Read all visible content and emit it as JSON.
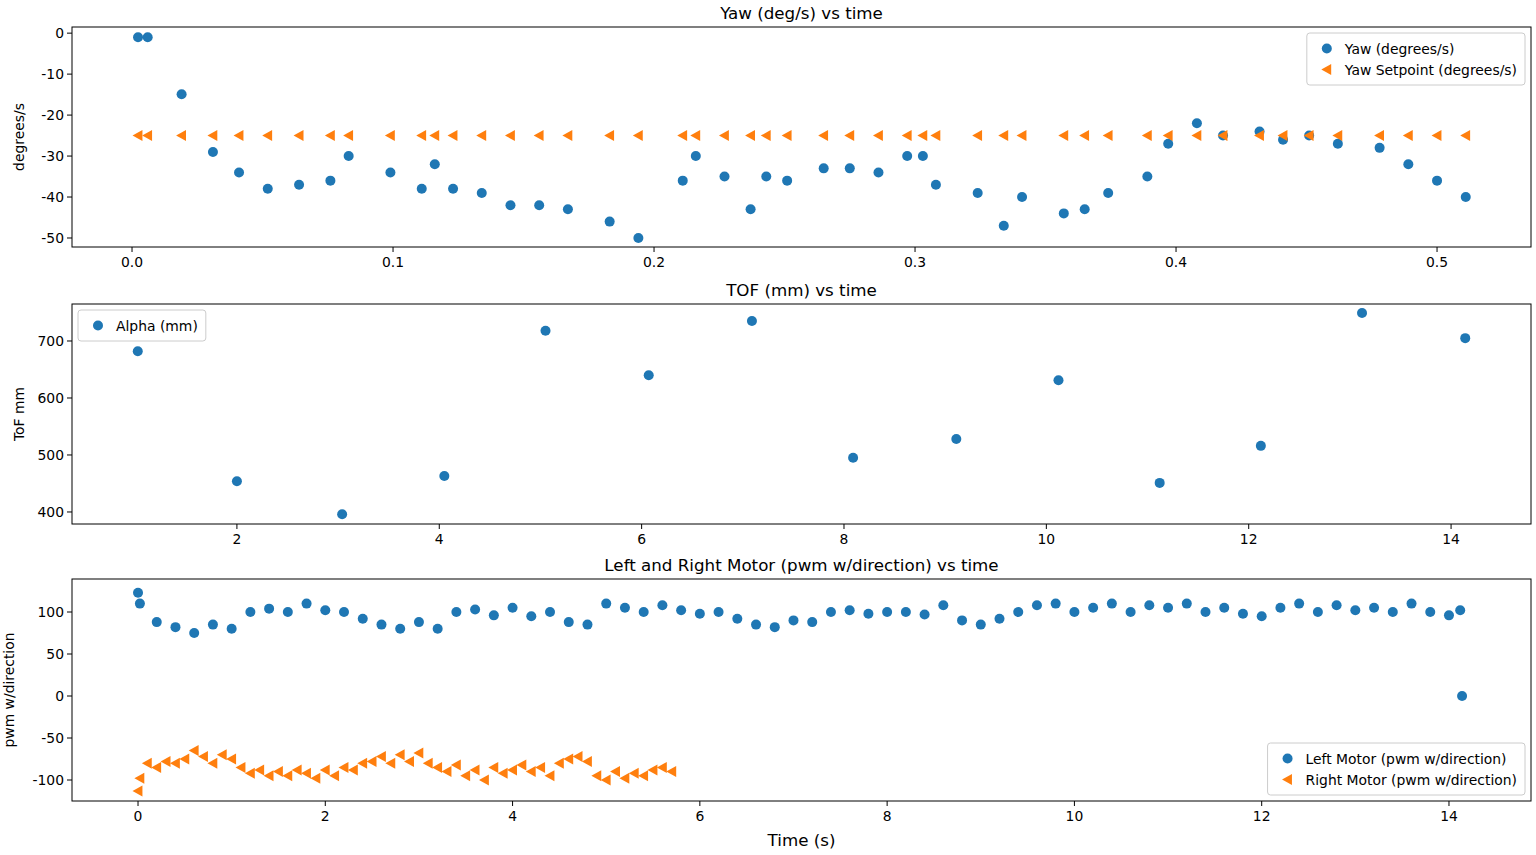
{
  "chart_data": [
    {
      "type": "scatter",
      "title": "Yaw (deg/s) vs time",
      "y_label": "degrees/s",
      "legend": "upper right",
      "xlim": [
        -0.023,
        0.536
      ],
      "ylim": [
        -52.2,
        1.5
      ],
      "xticks": [
        {
          "value": 0,
          "label": "0.0"
        },
        0.1,
        0.2,
        0.3,
        0.4,
        0.5
      ],
      "yticks": [
        0,
        -10,
        -20,
        -30,
        -40,
        -50
      ],
      "x": [
        0.0023,
        0.006,
        0.019,
        0.031,
        0.041,
        0.052,
        0.064,
        0.076,
        0.083,
        0.099,
        0.111,
        0.116,
        0.123,
        0.134,
        0.145,
        0.156,
        0.167,
        0.183,
        0.194,
        0.211,
        0.216,
        0.227,
        0.237,
        0.243,
        0.251,
        0.265,
        0.275,
        0.286,
        0.297,
        0.303,
        0.308,
        0.324,
        0.334,
        0.341,
        0.357,
        0.365,
        0.374,
        0.389,
        0.397,
        0.408,
        0.418,
        0.432,
        0.441,
        0.451,
        0.462,
        0.478,
        0.489,
        0.5,
        0.511
      ],
      "series": [
        {
          "name": "Yaw (degrees/s)",
          "color": "#1f77b4",
          "marker": "circle",
          "values": [
            -1,
            -1,
            -14.9,
            -29,
            -34,
            -38,
            -37,
            -36,
            -30,
            -34,
            -38,
            -32,
            -38,
            -39,
            -42,
            -42,
            -43,
            -46,
            -50,
            -36,
            -30,
            -35,
            -43,
            -35,
            -36,
            -33,
            -33,
            -34,
            -30,
            -30,
            -37,
            -39,
            -47,
            -40,
            -44,
            -43,
            -39,
            -35,
            -27,
            -22,
            -25,
            -24,
            -26,
            -25,
            -27,
            -28,
            -32,
            -36,
            -40
          ]
        },
        {
          "name": "Yaw Setpoint (degrees/s)",
          "color": "#ff7f0e",
          "marker": "triangle-left",
          "values": [
            -25,
            -25,
            -25,
            -25,
            -25,
            -25,
            -25,
            -25,
            -25,
            -25,
            -25,
            -25,
            -25,
            -25,
            -25,
            -25,
            -25,
            -25,
            -25,
            -25,
            -25,
            -25,
            -25,
            -25,
            -25,
            -25,
            -25,
            -25,
            -25,
            -25,
            -25,
            -25,
            -25,
            -25,
            -25,
            -25,
            -25,
            -25,
            -25,
            -25,
            -25,
            -25,
            -25,
            -25,
            -25,
            -25,
            -25,
            -25,
            -25
          ]
        }
      ]
    },
    {
      "type": "scatter",
      "title": "TOF (mm) vs time",
      "y_label": "ToF mm",
      "legend": "upper left",
      "xlim": [
        0.37,
        14.79
      ],
      "ylim": [
        378.9,
        764.9
      ],
      "xticks": [
        2,
        4,
        6,
        8,
        10,
        12,
        14
      ],
      "yticks": [
        400,
        500,
        600,
        700
      ],
      "x": [
        1.02,
        2.0,
        3.04,
        4.05,
        5.05,
        6.07,
        7.09,
        8.09,
        9.11,
        10.12,
        11.12,
        12.12,
        13.12,
        14.14
      ],
      "series": [
        {
          "name": "Alpha (mm)",
          "color": "#1f77b4",
          "marker": "circle",
          "values": [
            682,
            454,
            396,
            463,
            718,
            640,
            735,
            495,
            528,
            631,
            451,
            516,
            749,
            705
          ]
        }
      ]
    },
    {
      "type": "scatter",
      "title": "Left and Right Motor (pwm w/direction) vs time",
      "y_label": "pwm w/direction",
      "x_label": "Time (s)",
      "legend": "lower right",
      "xlim": [
        -0.705,
        14.876
      ],
      "ylim": [
        -125,
        139.3
      ],
      "xticks": [
        0,
        2,
        4,
        6,
        8,
        10,
        12,
        14
      ],
      "yticks": [
        -100,
        -50,
        0,
        50,
        100
      ],
      "series": [
        {
          "name": "Left Motor (pwm w/direction)",
          "color": "#1f77b4",
          "marker": "circle",
          "x": [
            0,
            0.02,
            0.2,
            0.4,
            0.6,
            0.8,
            1.0,
            1.2,
            1.4,
            1.6,
            1.8,
            2.0,
            2.2,
            2.4,
            2.6,
            2.8,
            3.0,
            3.2,
            3.4,
            3.6,
            3.8,
            4.0,
            4.2,
            4.4,
            4.6,
            4.8,
            5.0,
            5.2,
            5.4,
            5.6,
            5.8,
            6.0,
            6.2,
            6.4,
            6.6,
            6.8,
            7.0,
            7.2,
            7.4,
            7.6,
            7.8,
            8.0,
            8.2,
            8.4,
            8.6,
            8.8,
            9.0,
            9.2,
            9.4,
            9.6,
            9.8,
            10.0,
            10.2,
            10.4,
            10.6,
            10.8,
            11.0,
            11.2,
            11.4,
            11.6,
            11.8,
            12.0,
            12.2,
            12.4,
            12.6,
            12.8,
            13.0,
            13.2,
            13.4,
            13.6,
            13.8,
            14.0,
            14.12,
            14.14
          ],
          "values": [
            123,
            110,
            88,
            82,
            75,
            85,
            80,
            100,
            104,
            100,
            110,
            102,
            100,
            92,
            85,
            80,
            88,
            80,
            100,
            103,
            96,
            105,
            95,
            100,
            88,
            85,
            110,
            105,
            100,
            108,
            102,
            98,
            100,
            92,
            85,
            82,
            90,
            88,
            100,
            102,
            98,
            100,
            100,
            97,
            108,
            90,
            85,
            92,
            100,
            108,
            110,
            100,
            105,
            110,
            100,
            108,
            105,
            110,
            100,
            105,
            98,
            95,
            105,
            110,
            100,
            108,
            102,
            105,
            100,
            110,
            100,
            96,
            102,
            0
          ]
        },
        {
          "name": "Right Motor (pwm w/direction)",
          "color": "#ff7f0e",
          "marker": "triangle-left",
          "x": [
            0,
            0.02,
            0.1,
            0.2,
            0.3,
            0.4,
            0.5,
            0.6,
            0.7,
            0.8,
            0.9,
            1.0,
            1.1,
            1.2,
            1.3,
            1.4,
            1.5,
            1.6,
            1.7,
            1.8,
            1.9,
            2.0,
            2.1,
            2.2,
            2.3,
            2.4,
            2.5,
            2.6,
            2.7,
            2.8,
            2.9,
            3.0,
            3.1,
            3.2,
            3.3,
            3.4,
            3.5,
            3.6,
            3.7,
            3.8,
            3.9,
            4.0,
            4.1,
            4.2,
            4.3,
            4.4,
            4.5,
            4.6,
            4.7,
            4.8,
            4.9,
            5.0,
            5.1,
            5.2,
            5.3,
            5.4,
            5.5,
            5.6,
            5.7
          ],
          "values": [
            -113,
            -98,
            -80,
            -85,
            -78,
            -80,
            -75,
            -65,
            -72,
            -80,
            -70,
            -75,
            -85,
            -92,
            -88,
            -95,
            -90,
            -95,
            -88,
            -92,
            -98,
            -88,
            -95,
            -85,
            -88,
            -80,
            -78,
            -72,
            -80,
            -70,
            -78,
            -68,
            -80,
            -85,
            -90,
            -82,
            -95,
            -88,
            -100,
            -85,
            -92,
            -88,
            -82,
            -90,
            -85,
            -95,
            -80,
            -75,
            -72,
            -78,
            -95,
            -100,
            -90,
            -98,
            -92,
            -95,
            -88,
            -85,
            -90
          ]
        }
      ]
    }
  ]
}
